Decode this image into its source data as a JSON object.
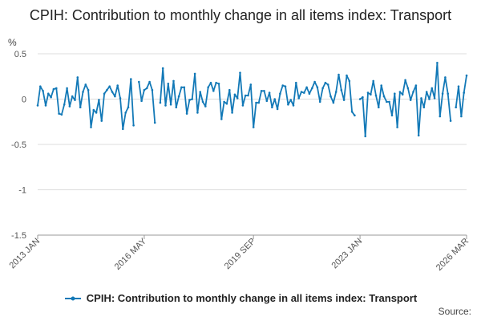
{
  "chart_data": {
    "type": "line",
    "title": "CPIH: Contribution to monthly change in all items index: Transport",
    "ylabel": "%",
    "ylim": [
      -1.5,
      0.5
    ],
    "yticks": [
      "0.5",
      "0",
      "-0.5",
      "-1",
      "-1.5"
    ],
    "xtick_labels": [
      "2013 JAN",
      "2016 MAY",
      "2019 SEP",
      "2023 JAN",
      "2026 MAR"
    ],
    "grid": true,
    "legend_position": "bottom",
    "series": [
      {
        "name": "CPIH: Contribution to monthly change in all items index: Transport",
        "color": "#1379b7",
        "x_start": "2013 JAN",
        "x_end": "2026 MAR",
        "values": [
          -0.07,
          0.14,
          0.09,
          -0.07,
          0.06,
          0.02,
          0.11,
          0.12,
          -0.16,
          -0.17,
          -0.06,
          0.12,
          -0.08,
          0.03,
          -0.01,
          0.24,
          -0.09,
          0.08,
          0.16,
          0.1,
          -0.31,
          -0.12,
          -0.15,
          -0.01,
          -0.24,
          0.06,
          0.1,
          0.14,
          0.08,
          0.03,
          0.15,
          0.01,
          -0.33,
          -0.15,
          -0.09,
          0.22,
          -0.29,
          null,
          0.19,
          -0.02,
          0.1,
          0.12,
          0.19,
          0.1,
          -0.26,
          null,
          -0.04,
          0.34,
          -0.07,
          0.17,
          -0.06,
          0.2,
          -0.09,
          0.03,
          0.13,
          0.13,
          -0.16,
          -0.01,
          0.0,
          0.28,
          -0.15,
          0.08,
          -0.03,
          -0.08,
          0.13,
          0.18,
          0.09,
          0.18,
          0.17,
          -0.22,
          -0.03,
          -0.05,
          0.1,
          -0.15,
          0.05,
          0.01,
          0.29,
          -0.07,
          0.04,
          0.04,
          0.16,
          -0.31,
          -0.04,
          -0.04,
          0.09,
          0.09,
          -0.02,
          0.07,
          -0.09,
          0.0,
          -0.11,
          0.06,
          0.15,
          0.14,
          -0.06,
          -0.01,
          -0.07,
          0.18,
          0.01,
          0.08,
          0.07,
          0.13,
          0.06,
          0.12,
          0.19,
          0.13,
          -0.03,
          0.12,
          0.18,
          0.16,
          0.03,
          -0.04,
          0.08,
          0.27,
          0.1,
          -0.01,
          0.26,
          0.2,
          -0.14,
          -0.18,
          null,
          0.0,
          0.02,
          -0.41,
          0.07,
          0.05,
          0.2,
          0.04,
          -0.09,
          0.15,
          0.03,
          -0.03,
          -0.03,
          -0.18,
          0.06,
          -0.31,
          0.08,
          0.05,
          0.21,
          0.12,
          -0.01,
          0.08,
          0.15,
          -0.4,
          0.01,
          -0.09,
          0.08,
          0.0,
          0.12,
          0.01,
          0.4,
          -0.19,
          0.06,
          0.24,
          0.06,
          -0.24,
          null,
          -0.09,
          0.14,
          -0.19,
          0.07,
          0.26
        ]
      }
    ]
  },
  "source_label": "Source:"
}
